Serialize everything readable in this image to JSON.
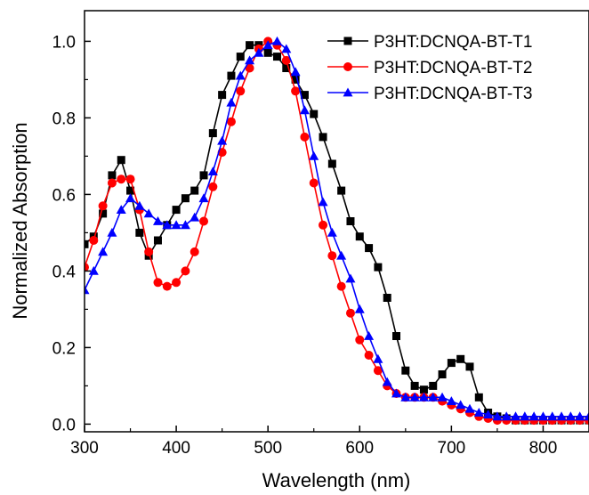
{
  "chart_data": {
    "type": "line",
    "xlabel": "Wavelength (nm)",
    "ylabel": "Normalized Absorption",
    "xlim": [
      300,
      850
    ],
    "ylim": [
      -0.02,
      1.08
    ],
    "x_ticks": [
      300,
      400,
      500,
      600,
      700,
      800
    ],
    "x_tick_labels": [
      "300",
      "400",
      "500",
      "600",
      "700",
      "800"
    ],
    "y_ticks": [
      0.0,
      0.2,
      0.4,
      0.6,
      0.8,
      1.0
    ],
    "y_tick_labels": [
      "0.0",
      "0.2",
      "0.4",
      "0.6",
      "0.8",
      "1.0"
    ],
    "grid": false,
    "legend_position": "top-right",
    "x": [
      300,
      310,
      320,
      330,
      340,
      350,
      360,
      370,
      380,
      390,
      400,
      410,
      420,
      430,
      440,
      450,
      460,
      470,
      480,
      490,
      500,
      510,
      520,
      530,
      540,
      550,
      560,
      570,
      580,
      590,
      600,
      610,
      620,
      630,
      640,
      650,
      660,
      670,
      680,
      690,
      700,
      710,
      720,
      730,
      740,
      750,
      760,
      770,
      780,
      790,
      800,
      810,
      820,
      830,
      840,
      850
    ],
    "series": [
      {
        "name": "P3HT:DCNQA-BT-T1",
        "color": "#000000",
        "marker": "square",
        "values": [
          0.47,
          0.49,
          0.55,
          0.65,
          0.69,
          0.61,
          0.5,
          0.44,
          0.48,
          0.52,
          0.56,
          0.59,
          0.61,
          0.65,
          0.76,
          0.86,
          0.91,
          0.96,
          0.99,
          0.99,
          0.97,
          0.96,
          0.93,
          0.9,
          0.86,
          0.81,
          0.75,
          0.68,
          0.61,
          0.53,
          0.49,
          0.46,
          0.41,
          0.33,
          0.23,
          0.14,
          0.1,
          0.09,
          0.1,
          0.13,
          0.16,
          0.17,
          0.15,
          0.07,
          0.03,
          0.02,
          0.015,
          0.01,
          0.01,
          0.01,
          0.01,
          0.01,
          0.01,
          0.01,
          0.01,
          0.01
        ]
      },
      {
        "name": "P3HT:DCNQA-BT-T2",
        "color": "#ff0000",
        "marker": "circle",
        "values": [
          0.41,
          0.48,
          0.57,
          0.63,
          0.64,
          0.64,
          0.56,
          0.45,
          0.37,
          0.36,
          0.37,
          0.4,
          0.45,
          0.53,
          0.62,
          0.71,
          0.79,
          0.87,
          0.93,
          0.98,
          1.0,
          0.99,
          0.95,
          0.87,
          0.75,
          0.63,
          0.52,
          0.44,
          0.36,
          0.29,
          0.22,
          0.18,
          0.14,
          0.1,
          0.08,
          0.07,
          0.07,
          0.07,
          0.07,
          0.06,
          0.05,
          0.04,
          0.03,
          0.02,
          0.015,
          0.01,
          0.01,
          0.01,
          0.01,
          0.01,
          0.01,
          0.01,
          0.01,
          0.01,
          0.01,
          0.01
        ]
      },
      {
        "name": "P3HT:DCNQA-BT-T3",
        "color": "#0000ff",
        "marker": "triangle",
        "values": [
          0.35,
          0.4,
          0.45,
          0.5,
          0.56,
          0.59,
          0.57,
          0.55,
          0.53,
          0.52,
          0.52,
          0.52,
          0.54,
          0.59,
          0.66,
          0.74,
          0.84,
          0.91,
          0.95,
          0.97,
          0.99,
          1.0,
          0.98,
          0.92,
          0.82,
          0.7,
          0.58,
          0.5,
          0.44,
          0.38,
          0.3,
          0.23,
          0.17,
          0.11,
          0.08,
          0.07,
          0.07,
          0.07,
          0.07,
          0.07,
          0.06,
          0.05,
          0.04,
          0.03,
          0.025,
          0.02,
          0.02,
          0.02,
          0.02,
          0.02,
          0.02,
          0.02,
          0.02,
          0.02,
          0.02,
          0.02
        ]
      }
    ]
  }
}
